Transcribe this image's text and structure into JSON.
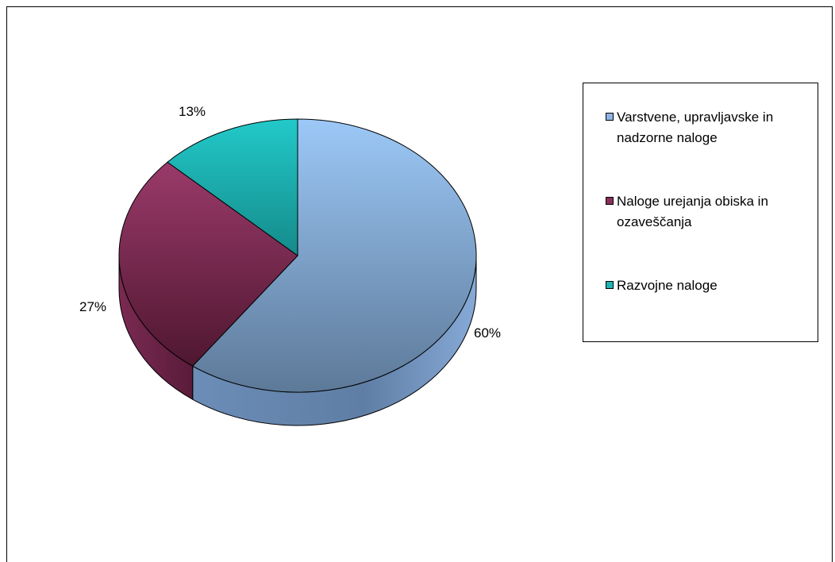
{
  "chart_data": {
    "type": "pie",
    "style": "3d",
    "categories": [
      "Varstvene, upravljavske in nadzorne naloge",
      "Naloge urejanja obiska in ozaveščanja",
      "Razvojne naloge"
    ],
    "values": [
      60,
      27,
      13
    ],
    "labels": [
      "60%",
      "27%",
      "13%"
    ],
    "colors": [
      "#8fb4e3",
      "#8b2f5c",
      "#1fb3b3"
    ],
    "legend_position": "right"
  }
}
